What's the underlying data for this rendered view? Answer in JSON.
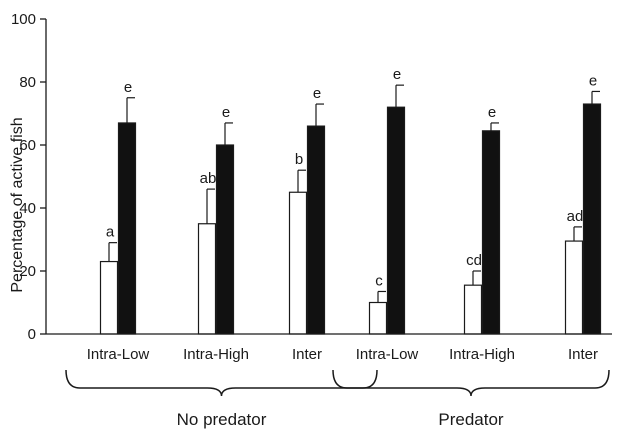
{
  "chart_data": {
    "type": "bar",
    "title": "",
    "xlabel": "",
    "ylabel": "Percentage of active fish",
    "ylim": [
      0,
      100
    ],
    "yticks": [
      0,
      20,
      40,
      60,
      80,
      100
    ],
    "grid": false,
    "legend": "none",
    "groups": [
      {
        "label": "No predator",
        "categories": [
          "Intra-Low",
          "Intra-High",
          "Inter"
        ],
        "white_values": [
          23,
          35,
          45
        ],
        "white_errors": [
          6,
          11,
          7
        ],
        "white_sig": [
          "a",
          "ab",
          "b"
        ],
        "black_values": [
          67,
          60,
          66
        ],
        "black_errors": [
          8,
          7,
          7
        ],
        "black_sig": [
          "e",
          "e",
          "e"
        ]
      },
      {
        "label": "Predator",
        "categories": [
          "Intra-Low",
          "Intra-High",
          "Inter"
        ],
        "white_values": [
          10,
          15.5,
          29.5
        ],
        "white_errors": [
          3.5,
          4.5,
          4.5
        ],
        "white_sig": [
          "c",
          "cd",
          "ad"
        ],
        "black_values": [
          72,
          64.5,
          73
        ],
        "black_errors": [
          7,
          2.5,
          4
        ],
        "black_sig": [
          "e",
          "e",
          "e"
        ]
      }
    ],
    "colors": {
      "white_bar": "#ffffff",
      "black_bar": "#111111",
      "axis": "#1a1a1a"
    }
  }
}
